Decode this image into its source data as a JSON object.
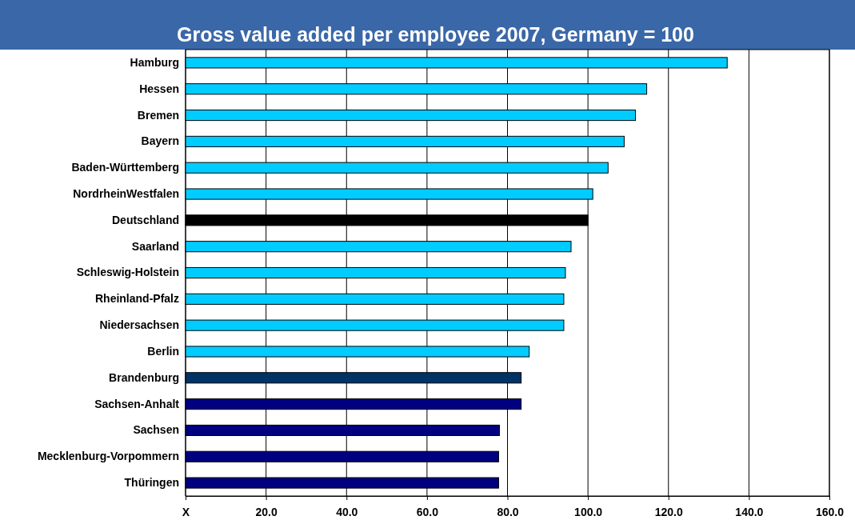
{
  "chart_data": {
    "type": "bar",
    "orientation": "horizontal",
    "title": "Gross value added per employee 2007, Germany = 100",
    "categories": [
      "Hamburg",
      "Hessen",
      "Bremen",
      "Bayern",
      "Baden-Württemberg",
      "NordrheinWestfalen",
      "Deutschland",
      "Saarland",
      "Schleswig-Holstein",
      "Rheinland-Pfalz",
      "Niedersachsen",
      "Berlin",
      "Brandenburg",
      "Sachsen-Anhalt",
      "Sachsen",
      "Mecklenburg-Vorpommern",
      "Thüringen"
    ],
    "values": [
      134.6,
      114.6,
      111.8,
      109.0,
      105.0,
      101.2,
      100.0,
      95.8,
      94.4,
      94.0,
      94.0,
      85.4,
      83.4,
      83.4,
      78.0,
      77.8,
      77.8
    ],
    "colors": [
      "#00ccff",
      "#00ccff",
      "#00ccff",
      "#00ccff",
      "#00ccff",
      "#00ccff",
      "#000000",
      "#00ccff",
      "#00ccff",
      "#00ccff",
      "#00ccff",
      "#00ccff",
      "#003366",
      "#000080",
      "#000080",
      "#000080",
      "#000080"
    ],
    "xlim": [
      0,
      160
    ],
    "xticks": [
      {
        "value": 0,
        "label": "X"
      },
      {
        "value": 20,
        "label": "20.0"
      },
      {
        "value": 40,
        "label": "40.0"
      },
      {
        "value": 60,
        "label": "60.0"
      },
      {
        "value": 80,
        "label": "80.0"
      },
      {
        "value": 100,
        "label": "100.0"
      },
      {
        "value": 120,
        "label": "120.0"
      },
      {
        "value": 140,
        "label": "140.0"
      },
      {
        "value": 160,
        "label": "160.0"
      }
    ],
    "grid": "x"
  }
}
